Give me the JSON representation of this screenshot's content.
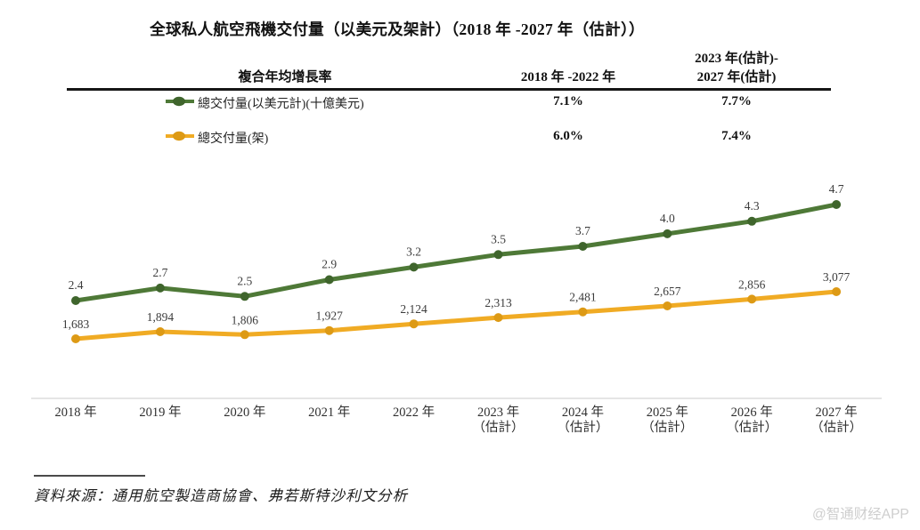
{
  "title": "全球私人航空飛機交付量（以美元及架計）（2018 年 -2027 年（估計））",
  "table": {
    "row_header": "複合年均增長率",
    "period1_header": "2018 年 -2022 年",
    "period2_header_line1": "2023 年(估計)-",
    "period2_header_line2": "2027 年(估計)",
    "rows": [
      {
        "legend": "總交付量(以美元計)(十億美元)",
        "period1": "7.1%",
        "period2": "7.7%"
      },
      {
        "legend": "總交付量(架)",
        "period1": "6.0%",
        "period2": "7.4%"
      }
    ]
  },
  "chart_data": {
    "type": "line",
    "title": "全球私人航空飛機交付量（以美元及架計）（2018 年 -2027 年（估計））",
    "categories": [
      "2018 年",
      "2019 年",
      "2020 年",
      "2021 年",
      "2022 年",
      "2023 年",
      "2024 年",
      "2025 年",
      "2026 年",
      "2027 年"
    ],
    "estimate_suffix": "（估計）",
    "estimate_from_index": 5,
    "grid": false,
    "legend_position": "top-table",
    "series": [
      {
        "id": "usd",
        "name": "總交付量(以美元計)(十億美元)",
        "unit": "十億美元",
        "color": "#4e7937",
        "marker_color": "#3f652c",
        "values": [
          2.4,
          2.7,
          2.5,
          2.9,
          3.2,
          3.5,
          3.7,
          4.0,
          4.3,
          4.7
        ],
        "labels": [
          "2.4",
          "2.7",
          "2.5",
          "2.9",
          "3.2",
          "3.5",
          "3.7",
          "4.0",
          "4.3",
          "4.7"
        ],
        "cagr_2018_2022": "7.1%",
        "cagr_2023_2027": "7.7%"
      },
      {
        "id": "units",
        "name": "總交付量(架)",
        "unit": "架",
        "color": "#f0ab24",
        "marker_color": "#dd9a15",
        "values": [
          1683,
          1894,
          1806,
          1927,
          2124,
          2313,
          2481,
          2657,
          2856,
          3077
        ],
        "labels": [
          "1,683",
          "1,894",
          "1,806",
          "1,927",
          "2,124",
          "2,313",
          "2,481",
          "2,657",
          "2,856",
          "3,077"
        ],
        "cagr_2018_2022": "6.0%",
        "cagr_2023_2027": "7.4%"
      }
    ],
    "axis_line_color": "#e5e5e5"
  },
  "source": "資料來源：通用航空製造商協會、弗若斯特沙利文分析",
  "watermark": "@智通财经APP"
}
